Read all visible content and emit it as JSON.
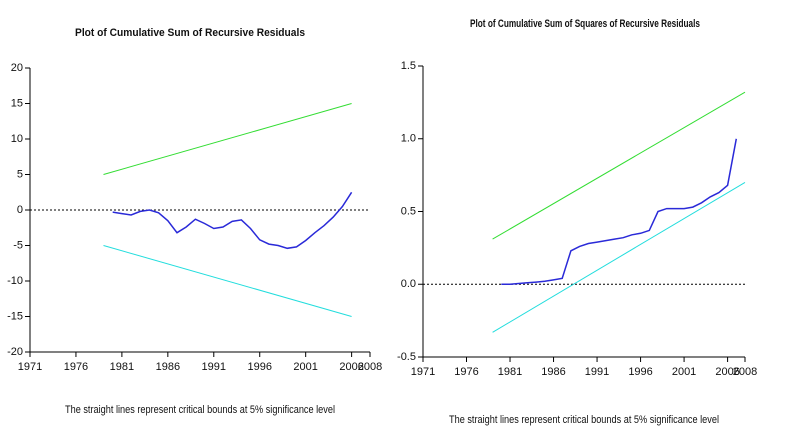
{
  "chart_data": [
    {
      "type": "line",
      "title": "Plot of Cumulative Sum of Recursive Residuals",
      "note": "The straight lines represent critical bounds at 5% significance level",
      "xlim": [
        1971,
        2008
      ],
      "xticks": [
        1971,
        1976,
        1981,
        1986,
        1991,
        1996,
        2001,
        2006,
        2008
      ],
      "ylim": [
        -20,
        20
      ],
      "yticks": [
        20,
        15,
        10,
        5,
        0,
        -5,
        -10,
        -15,
        -20
      ],
      "hline": 0,
      "series": [
        {
          "color": "#2a2ad8",
          "x": [
            1980,
            1981,
            1982,
            1983,
            1984,
            1985,
            1986,
            1987,
            1988,
            1989,
            1990,
            1991,
            1992,
            1993,
            1994,
            1995,
            1996,
            1997,
            1998,
            1999,
            2000,
            2001,
            2002,
            2003,
            2004,
            2005,
            2006
          ],
          "values": [
            -0.3,
            -0.5,
            -0.7,
            -0.2,
            0,
            -0.4,
            -1.5,
            -3.2,
            -2.4,
            -1.3,
            -1.9,
            -2.6,
            -2.4,
            -1.6,
            -1.4,
            -2.6,
            -4.2,
            -4.8,
            -5,
            -5.4,
            -5.2,
            -4.3,
            -3.2,
            -2.2,
            -1,
            0.5,
            2.5
          ]
        },
        {
          "color": "#33dd33",
          "x": [
            1979,
            2006
          ],
          "values": [
            5,
            15
          ]
        },
        {
          "color": "#22dddd",
          "x": [
            1979,
            2006
          ],
          "values": [
            -5,
            -15
          ]
        }
      ]
    },
    {
      "type": "line",
      "title": "Plot of Cumulative Sum of Squares of Recursive Residuals",
      "note": "The straight lines represent critical bounds at 5% significance level",
      "xlim": [
        1971,
        2008
      ],
      "xticks": [
        1971,
        1976,
        1981,
        1986,
        1991,
        1996,
        2001,
        2006,
        2008
      ],
      "ylim": [
        -0.5,
        1.5
      ],
      "yticks": [
        1.5,
        {
          "value": 1.0,
          "label": "1.0"
        },
        0.5,
        {
          "value": 0.0,
          "label": "0.0"
        },
        -0.5
      ],
      "hline": 0,
      "series": [
        {
          "color": "#2a2ad8",
          "x": [
            1980,
            1981,
            1982,
            1983,
            1984,
            1985,
            1986,
            1987,
            1988,
            1989,
            1990,
            1991,
            1992,
            1993,
            1994,
            1995,
            1996,
            1997,
            1998,
            1999,
            2000,
            2001,
            2002,
            2003,
            2004,
            2005,
            2006,
            2007
          ],
          "values": [
            0,
            0,
            0.005,
            0.01,
            0.015,
            0.02,
            0.03,
            0.04,
            0.23,
            0.26,
            0.28,
            0.29,
            0.3,
            0.31,
            0.32,
            0.34,
            0.35,
            0.37,
            0.5,
            0.52,
            0.52,
            0.52,
            0.53,
            0.56,
            0.6,
            0.63,
            0.68,
            1.0
          ]
        },
        {
          "color": "#33dd33",
          "x": [
            1979,
            2008
          ],
          "values": [
            0.31,
            1.32
          ]
        },
        {
          "color": "#22dddd",
          "x": [
            1979,
            2008
          ],
          "values": [
            -0.33,
            0.7
          ]
        }
      ]
    }
  ]
}
